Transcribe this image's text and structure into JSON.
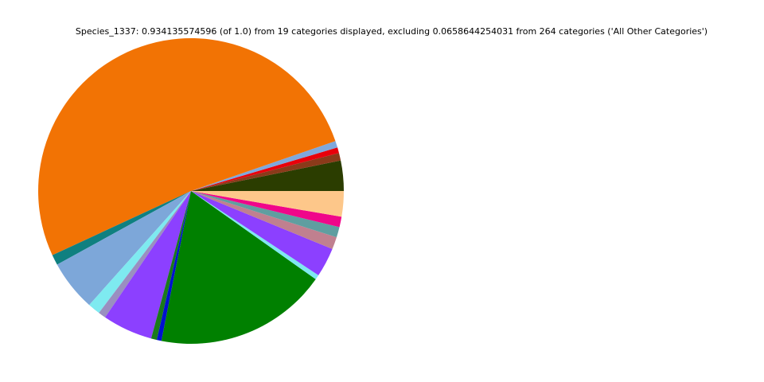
{
  "chart_data": {
    "type": "pie",
    "title": "Species_1337: 0.934135574596 (of 1.0) from 19 categories displayed, excluding 0.0658644254031 from 264 categories ('All Other Categories')",
    "values": [
      3.2,
      0.8,
      0.6,
      0.7,
      51.6,
      1.1,
      5.4,
      1.3,
      0.8,
      5.3,
      0.6,
      0.5,
      18.3,
      0.5,
      3.1,
      1.3,
      1.1,
      1.1,
      2.7
    ],
    "colors": [
      "#2b3d00",
      "#8b3a1a",
      "#e8000b",
      "#7fa8dc",
      "#f27304",
      "#0f8080",
      "#7da7d9",
      "#7eeaf0",
      "#9a8fc0",
      "#8c40ff",
      "#1a7a1a",
      "#0010d0",
      "#008000",
      "#7ee8f0",
      "#8c40ff",
      "#c0808f",
      "#5f9ea0",
      "#f0068a",
      "#fdc78a"
    ]
  }
}
